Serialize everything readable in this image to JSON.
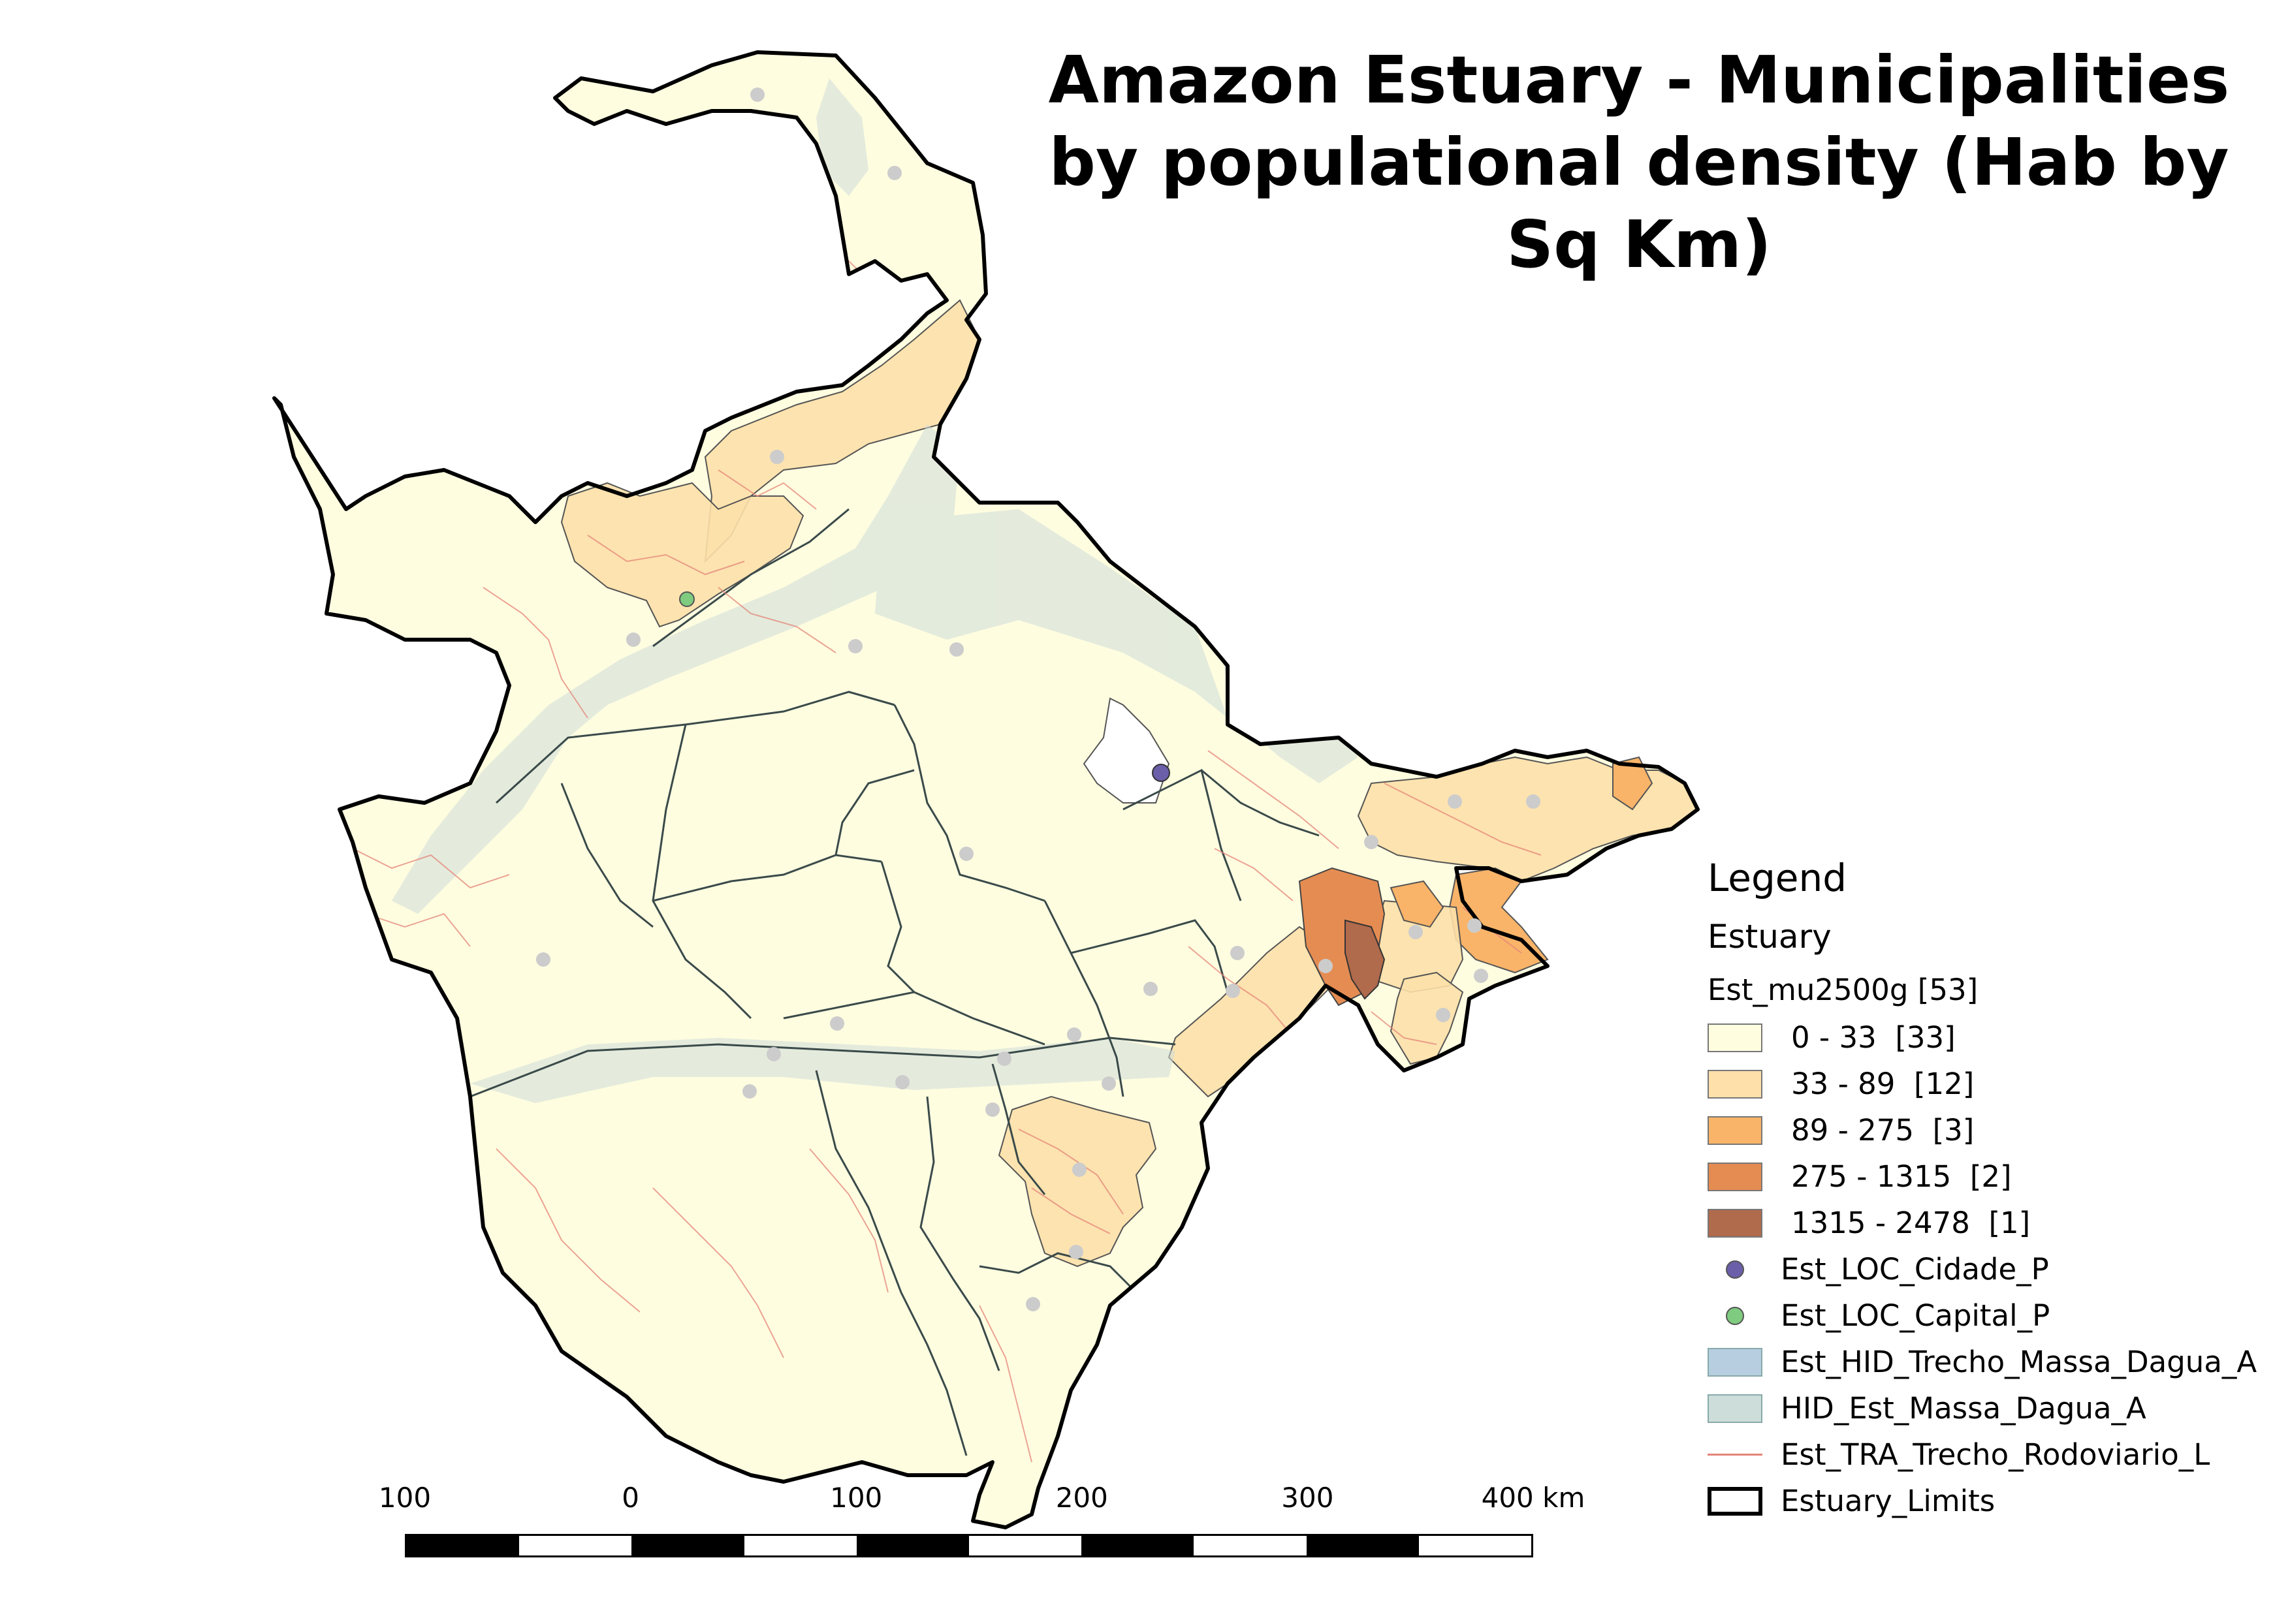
{
  "title": "Amazon Estuary - Municipalities by populational density (Hab by Sq Km)",
  "colors": {
    "class_0": "#fffde0",
    "class_1": "#fde0aa",
    "class_2": "#f9b469",
    "class_3": "#e58c52",
    "class_4": "#b06a4c",
    "cidade": "#6a5fa8",
    "capital": "#7fcb7f",
    "trecho_massa_dagua": "#b7cde0",
    "massa_dagua": "#cdddd9",
    "road": "#e4857a",
    "limits": "#000000",
    "boundary": "#333333"
  },
  "legend": {
    "heading": "Legend",
    "group": "Estuary",
    "layer_title": "Est_mu2500g [53]",
    "classes": [
      {
        "label": "0 - 33  [33]",
        "color": "#fffde0"
      },
      {
        "label": "33 - 89  [12]",
        "color": "#fde0aa"
      },
      {
        "label": "89 - 275  [3]",
        "color": "#f9b469"
      },
      {
        "label": "275 - 1315  [2]",
        "color": "#e58c52"
      },
      {
        "label": "1315 - 2478  [1]",
        "color": "#b06a4c"
      }
    ],
    "layers": [
      {
        "label": "Est_LOC_Cidade_P",
        "type": "point",
        "color": "#6a5fa8",
        "icon": "circle-point-icon"
      },
      {
        "label": "Est_LOC_Capital_P",
        "type": "point",
        "color": "#7fcb7f",
        "icon": "circle-point-icon"
      },
      {
        "label": "Est_HID_Trecho_Massa_Dagua_A",
        "type": "fill",
        "color": "#b7cde0",
        "icon": "water-fill-icon"
      },
      {
        "label": "HID_Est_Massa_Dagua_A",
        "type": "fill",
        "color": "#cdddd9",
        "icon": "water-fill-icon"
      },
      {
        "label": "Est_TRA_Trecho_Rodoviario_L",
        "type": "line",
        "color": "#e4857a",
        "icon": "road-line-icon"
      },
      {
        "label": "Estuary_Limits",
        "type": "outline",
        "color": "#000000",
        "icon": "outline-icon"
      }
    ]
  },
  "scalebar": {
    "labels": [
      "100",
      "0",
      "100",
      "200",
      "300",
      "400 km"
    ]
  }
}
